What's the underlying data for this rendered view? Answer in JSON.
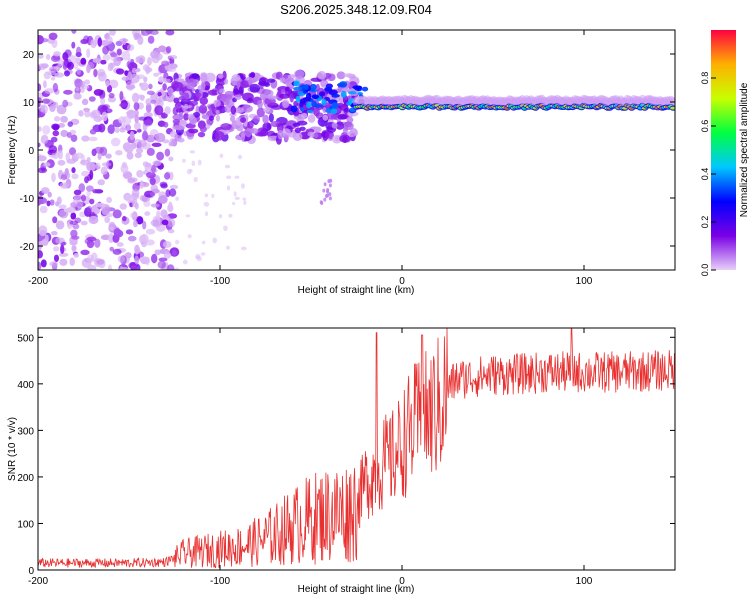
{
  "figure": {
    "title": "S206.2025.348.12.09.R04"
  },
  "chart_data": [
    {
      "type": "heatmap",
      "title": "S206.2025.348.12.09.R04",
      "xlabel": "Height of straight line (km)",
      "ylabel": "Frequency (Hz)",
      "xlim": [
        -200,
        150
      ],
      "ylim": [
        -25,
        25
      ],
      "x_ticks": [
        -200,
        -100,
        0,
        100
      ],
      "x_tick_labels": [
        "-200",
        "-100",
        "0",
        "100"
      ],
      "y_ticks": [
        20,
        10,
        0,
        -10,
        -20
      ],
      "y_tick_labels": [
        "20",
        "10",
        "0",
        "-10",
        "-20"
      ],
      "colorbar": {
        "label": "Normalized spectral amplitude",
        "range": [
          0,
          1
        ],
        "ticks": [
          0.0,
          0.2,
          0.4,
          0.6,
          0.8
        ],
        "tick_labels": [
          "0.0",
          "0.2",
          "0.4",
          "0.6",
          "0.8"
        ],
        "colormap": [
          "#e8d0f8",
          "#7a00e6",
          "#0000ff",
          "#00c8ff",
          "#00ff40",
          "#c8ff00",
          "#ffb000",
          "#ff0040"
        ]
      },
      "features": [
        {
          "name": "diffuse scatter",
          "x_range": [
            -200,
            -125
          ],
          "y_range": [
            -25,
            25
          ],
          "amplitude": 0.1
        },
        {
          "name": "onset cluster",
          "x_range": [
            -125,
            -25
          ],
          "y_range": [
            2,
            16
          ],
          "amplitude": 0.2
        },
        {
          "name": "dominant band",
          "x_range": [
            -25,
            150
          ],
          "frequency": 9,
          "amplitude": 0.8
        }
      ],
      "grid": false
    },
    {
      "type": "line",
      "xlabel": "Height of straight line (km)",
      "ylabel": "SNR (10 * v/v)",
      "xlim": [
        -200,
        150
      ],
      "ylim": [
        0,
        520
      ],
      "x_ticks": [
        -200,
        -100,
        0,
        100
      ],
      "x_tick_labels": [
        "-200",
        "-100",
        "0",
        "100"
      ],
      "y_ticks": [
        0,
        100,
        200,
        300,
        400,
        500
      ],
      "y_tick_labels": [
        "0",
        "100",
        "200",
        "300",
        "400",
        "500"
      ],
      "color": "#e83030",
      "series": [
        {
          "x": [
            -200,
            -175,
            -150,
            -130,
            -120,
            -110,
            -100,
            -90,
            -80,
            -70,
            -60,
            -50,
            -40,
            -30,
            -25,
            -20,
            -15,
            -10,
            -5,
            0,
            5,
            10,
            15,
            20,
            25,
            30,
            40,
            50,
            60,
            80,
            100,
            120,
            150
          ],
          "values": [
            15,
            15,
            15,
            17,
            35,
            40,
            45,
            50,
            60,
            75,
            95,
            110,
            120,
            125,
            140,
            190,
            210,
            230,
            240,
            270,
            300,
            320,
            330,
            350,
            390,
            410,
            415,
            420,
            420,
            425,
            425,
            425,
            430
          ],
          "peaks": [
            {
              "x": -14,
              "y": 510
            },
            {
              "x": 11,
              "y": 505
            },
            {
              "x": 93,
              "y": 520
            }
          ]
        }
      ],
      "grid": false
    }
  ]
}
